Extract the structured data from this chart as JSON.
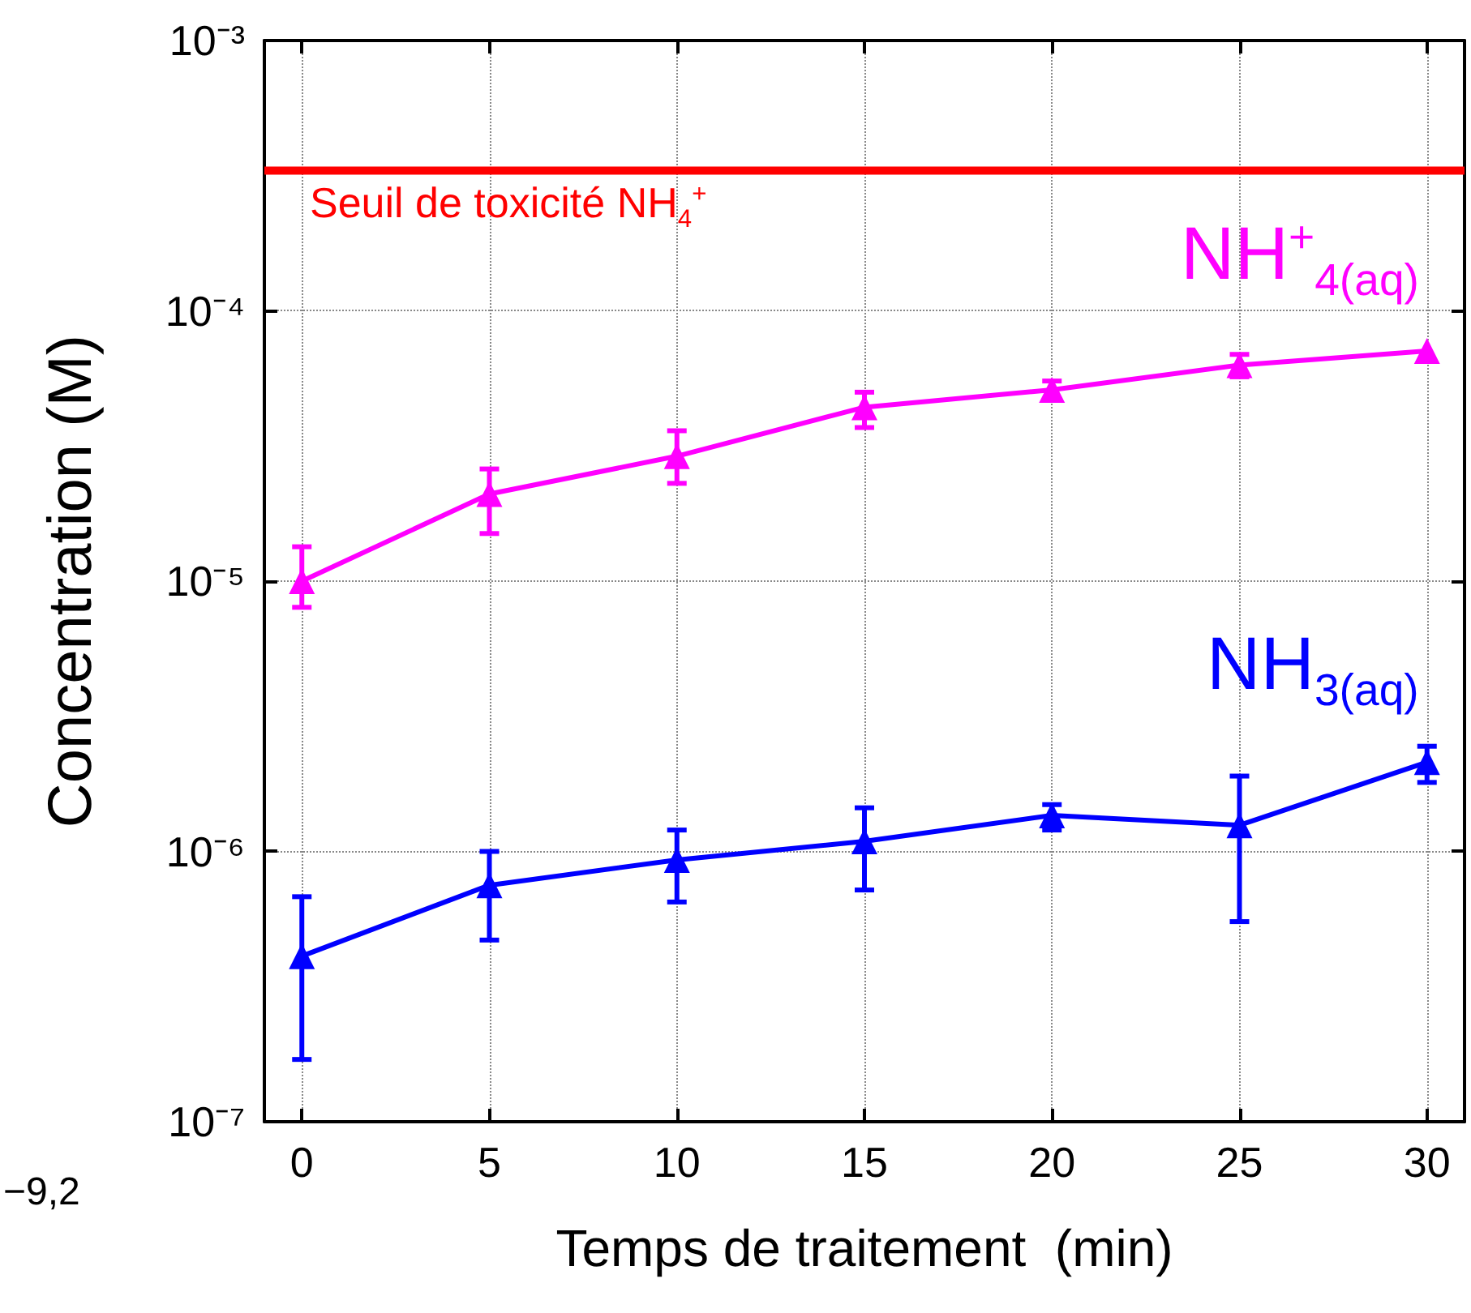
{
  "chart_data": {
    "type": "line",
    "xlabel": "Temps de traitement  (min)",
    "ylabel": "Concentration (M)",
    "x": [
      0,
      5,
      10,
      15,
      20,
      25,
      30
    ],
    "series": [
      {
        "name": "NH$^{+}$$_{4(aq)}$",
        "color": "#ff00ff",
        "values": [
          1e-05,
          2.1e-05,
          2.9e-05,
          4.4e-05,
          5.1e-05,
          6.3e-05,
          7.1e-05
        ],
        "errors": [
          [
            8e-06,
            1.34e-05
          ],
          [
            1.5e-05,
            2.6e-05
          ],
          [
            2.3e-05,
            3.6e-05
          ],
          [
            3.7e-05,
            5e-05
          ],
          [
            4.7e-05,
            5.5e-05
          ],
          [
            5.7e-05,
            6.9e-05
          ],
          null
        ]
      },
      {
        "name": "NH$_{3(aq)}$",
        "color": "#0000ff",
        "values": [
          4.1e-07,
          7.5e-07,
          9.3e-07,
          1.09e-06,
          1.36e-06,
          1.25e-06,
          2.14e-06
        ],
        "errors": [
          [
            1.7e-07,
            6.8e-07
          ],
          [
            4.7e-07,
            1e-06
          ],
          [
            6.5e-07,
            1.2e-06
          ],
          [
            7.2e-07,
            1.45e-06
          ],
          [
            1.2e-06,
            1.49e-06
          ],
          [
            5.5e-07,
            1.9e-06
          ],
          [
            1.8e-06,
            2.45e-06
          ]
        ]
      }
    ],
    "xlim": [
      -1,
      31
    ],
    "xticks": [
      0,
      5,
      10,
      15,
      20,
      25,
      30
    ],
    "ylim": [
      1e-07,
      0.001
    ],
    "yticks": [
      {
        "value": 1e-07,
        "label": "10⁻⁷"
      },
      {
        "value": 1e-06,
        "label": "10⁻⁶"
      },
      {
        "value": 1e-05,
        "label": "10⁻⁵"
      },
      {
        "value": 0.0001,
        "label": "10⁻⁴"
      },
      {
        "value": 0.001,
        "label": "10⁻³"
      }
    ],
    "log": "y",
    "grid": true,
    "legend": false,
    "marker": "triangle",
    "line_style": "solid",
    "ref_lines": [
      {
        "axis": "y",
        "value": 0.00033,
        "label": "Seuil de toxicité NH$_{4}$$^{+}$",
        "color": "#ff0000",
        "line_style": "solid"
      }
    ],
    "annotations": [
      "−9,2"
    ]
  }
}
